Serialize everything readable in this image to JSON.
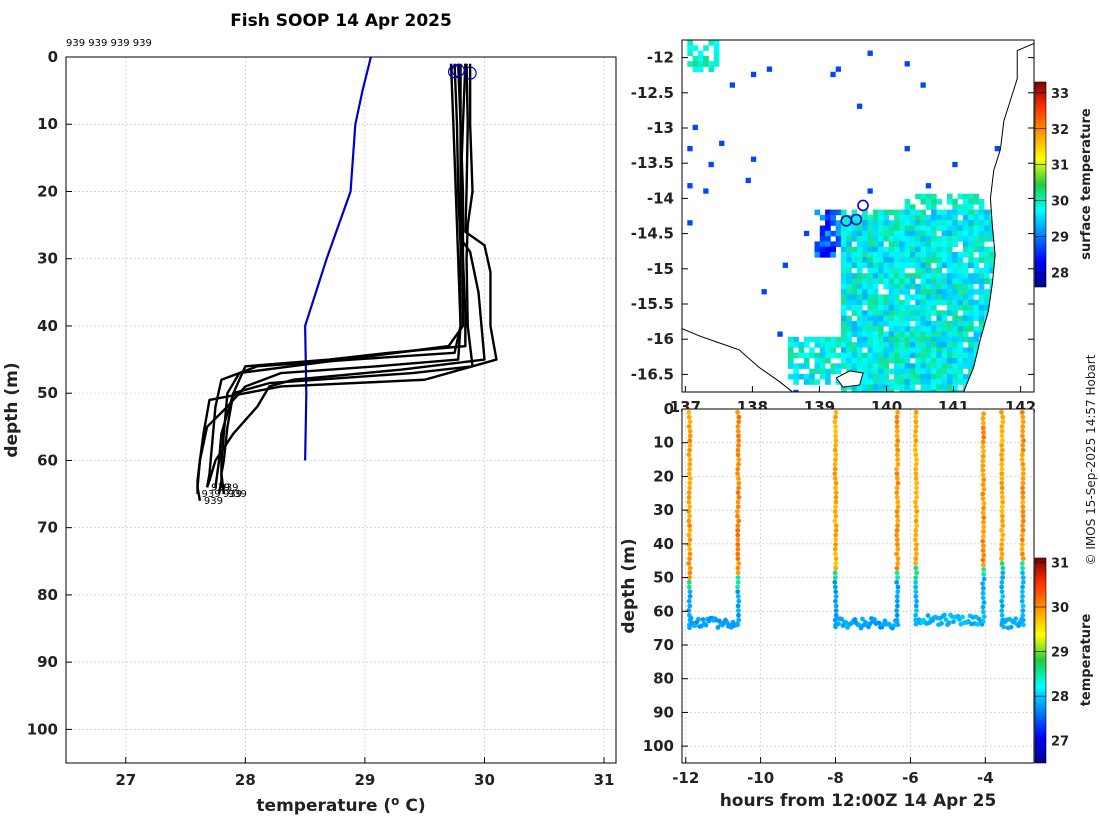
{
  "chart_data": [
    {
      "type": "line",
      "panel": "profile",
      "title": "Fish SOOP 14 Apr 2025",
      "id_labels": "939 939 939 939",
      "xlabel": "temperature (o C)",
      "xlabel_parts": {
        "pre": "temperature (",
        "sup": "o",
        "post": " C)"
      },
      "ylabel": "depth (m)",
      "xlim": [
        26.5,
        31.1
      ],
      "ylim": [
        0,
        105
      ],
      "xticks": [
        27,
        28,
        29,
        30,
        31
      ],
      "yticks": [
        0,
        10,
        20,
        30,
        40,
        50,
        60,
        70,
        80,
        90,
        100
      ],
      "grid": true,
      "profile_end_label": "939",
      "climatology": {
        "name": "climatology",
        "color": "#0000cc",
        "points": [
          [
            29.05,
            0
          ],
          [
            28.98,
            5
          ],
          [
            28.92,
            10
          ],
          [
            28.88,
            20
          ],
          [
            28.68,
            30
          ],
          [
            28.5,
            40
          ],
          [
            28.51,
            50
          ],
          [
            28.5,
            60
          ]
        ]
      },
      "series": [
        {
          "name": "profile 1",
          "color": "#000000",
          "points": [
            [
              29.72,
              1
            ],
            [
              29.74,
              10
            ],
            [
              29.76,
              20
            ],
            [
              29.78,
              30
            ],
            [
              29.8,
              40
            ],
            [
              29.75,
              44
            ],
            [
              28.9,
              45
            ],
            [
              28.1,
              46
            ],
            [
              27.8,
              48
            ],
            [
              27.75,
              52
            ],
            [
              27.72,
              58
            ],
            [
              27.7,
              62
            ],
            [
              27.68,
              64
            ]
          ]
        },
        {
          "name": "profile 2",
          "color": "#000000",
          "points": [
            [
              29.78,
              1
            ],
            [
              29.8,
              10
            ],
            [
              29.82,
              20
            ],
            [
              29.82,
              30
            ],
            [
              29.82,
              40
            ],
            [
              29.7,
              43
            ],
            [
              28.6,
              45.5
            ],
            [
              27.95,
              47
            ],
            [
              27.85,
              50
            ],
            [
              27.82,
              56
            ],
            [
              27.8,
              60
            ],
            [
              27.8,
              63
            ],
            [
              27.78,
              65
            ]
          ]
        },
        {
          "name": "profile 3",
          "color": "#000000",
          "points": [
            [
              29.85,
              1
            ],
            [
              29.86,
              10
            ],
            [
              29.85,
              20
            ],
            [
              29.84,
              26
            ],
            [
              30.0,
              28
            ],
            [
              30.05,
              32
            ],
            [
              30.05,
              40
            ],
            [
              30.1,
              45
            ],
            [
              29.5,
              48
            ],
            [
              28.3,
              49
            ],
            [
              27.7,
              51
            ],
            [
              27.65,
              56
            ],
            [
              27.62,
              60
            ],
            [
              27.6,
              63
            ],
            [
              27.6,
              65
            ]
          ]
        },
        {
          "name": "profile 4",
          "color": "#000000",
          "points": [
            [
              29.88,
              1
            ],
            [
              29.88,
              10
            ],
            [
              29.9,
              20
            ],
            [
              29.86,
              25
            ],
            [
              29.85,
              30
            ],
            [
              29.86,
              40
            ],
            [
              29.9,
              46
            ],
            [
              29.4,
              47
            ],
            [
              28.2,
              48.5
            ],
            [
              27.9,
              50
            ],
            [
              27.8,
              56
            ],
            [
              27.78,
              60
            ],
            [
              27.75,
              64
            ]
          ]
        },
        {
          "name": "profile 5",
          "color": "#000000",
          "points": [
            [
              29.75,
              1
            ],
            [
              29.77,
              10
            ],
            [
              29.78,
              20
            ],
            [
              29.8,
              28
            ],
            [
              29.8,
              40
            ],
            [
              29.78,
              45
            ],
            [
              29.1,
              46
            ],
            [
              28.3,
              47
            ],
            [
              28.0,
              49
            ],
            [
              27.85,
              52
            ],
            [
              27.68,
              55
            ],
            [
              27.62,
              60
            ],
            [
              27.6,
              64
            ],
            [
              27.62,
              66
            ]
          ]
        },
        {
          "name": "profile 6",
          "color": "#000000",
          "points": [
            [
              29.8,
              1
            ],
            [
              29.8,
              10
            ],
            [
              29.8,
              20
            ],
            [
              29.82,
              30
            ],
            [
              29.84,
              38
            ],
            [
              29.84,
              43
            ],
            [
              29.2,
              44
            ],
            [
              28.7,
              45
            ],
            [
              28.0,
              46
            ],
            [
              27.9,
              50
            ],
            [
              27.85,
              55
            ],
            [
              27.82,
              60
            ],
            [
              27.8,
              62
            ],
            [
              27.82,
              65
            ]
          ]
        },
        {
          "name": "profile 7",
          "color": "#000000",
          "points": [
            [
              29.84,
              1
            ],
            [
              29.82,
              10
            ],
            [
              29.8,
              20
            ],
            [
              29.8,
              27
            ],
            [
              29.88,
              29
            ],
            [
              29.95,
              35
            ],
            [
              30.0,
              45
            ],
            [
              29.3,
              46.5
            ],
            [
              28.4,
              48
            ],
            [
              28.2,
              49
            ],
            [
              28.1,
              52
            ],
            [
              27.9,
              56
            ],
            [
              27.75,
              60
            ],
            [
              27.7,
              63
            ],
            [
              27.68,
              64
            ]
          ]
        }
      ],
      "surface_markers": [
        [
          29.75,
          1
        ],
        [
          29.78,
          0.8
        ],
        [
          29.88,
          1.2
        ]
      ]
    },
    {
      "type": "heatmap",
      "panel": "map",
      "colorbar_label": "surface temperature",
      "colorbar_range": [
        27.6,
        33.3
      ],
      "colorbar_ticks": [
        28,
        29,
        30,
        31,
        32,
        33
      ],
      "xlim": [
        136.95,
        142.2
      ],
      "ylim": [
        -16.75,
        -11.75
      ],
      "xticks": [
        137,
        138,
        139,
        140,
        141,
        142
      ],
      "xtick_labels": [
        "137",
        "138",
        "139",
        "140",
        "141",
        "142"
      ],
      "yticks": [
        -12,
        -12.5,
        -13,
        -13.5,
        -14,
        -14.5,
        -15,
        -15.5,
        -16,
        -16.5
      ],
      "yticks_labels": [
        "-12",
        "-12.5",
        "-13",
        "-13.5",
        "-14",
        "-14.5",
        "-15",
        "-15.5",
        "-16",
        "-16.5"
      ],
      "track_markers": [
        [
          139.4,
          -14.32
        ],
        [
          139.55,
          -14.3
        ],
        [
          139.65,
          -14.1
        ]
      ],
      "land_color": "#ffffff",
      "coast_color": "#000000"
    },
    {
      "type": "scatter",
      "panel": "time-depth",
      "xlabel": "hours from 12:00Z 14 Apr 25",
      "ylabel": "depth (m)",
      "xlim": [
        -12.1,
        -2.7
      ],
      "ylim": [
        0,
        105
      ],
      "xticks": [
        -12,
        -10,
        -8,
        -6,
        -4
      ],
      "yticks": [
        0,
        10,
        20,
        30,
        40,
        50,
        60,
        70,
        80,
        90,
        100
      ],
      "colorbar_label": "temperature",
      "colorbar_range": [
        26.5,
        31.1
      ],
      "colorbar_ticks": [
        27,
        28,
        29,
        30,
        31
      ],
      "casts": [
        {
          "t_down": -11.9,
          "t_up": -10.6,
          "mld": 50,
          "bottom": 64,
          "upper_temp": 29.9,
          "lower_temp": 27.7
        },
        {
          "t_down": -8.0,
          "t_up": -6.35,
          "mld": 48,
          "bottom": 64,
          "upper_temp": 29.8,
          "lower_temp": 27.7
        },
        {
          "t_down": -5.85,
          "t_up": -4.05,
          "mld": 47,
          "bottom": 63,
          "upper_temp": 29.8,
          "lower_temp": 27.8
        },
        {
          "t_down": -3.55,
          "t_up": -3.0,
          "mld": 45,
          "bottom": 64,
          "upper_temp": 29.8,
          "lower_temp": 27.8
        }
      ]
    }
  ],
  "credit": "© IMOS 15-Sep-2025 14:57 Hobart"
}
